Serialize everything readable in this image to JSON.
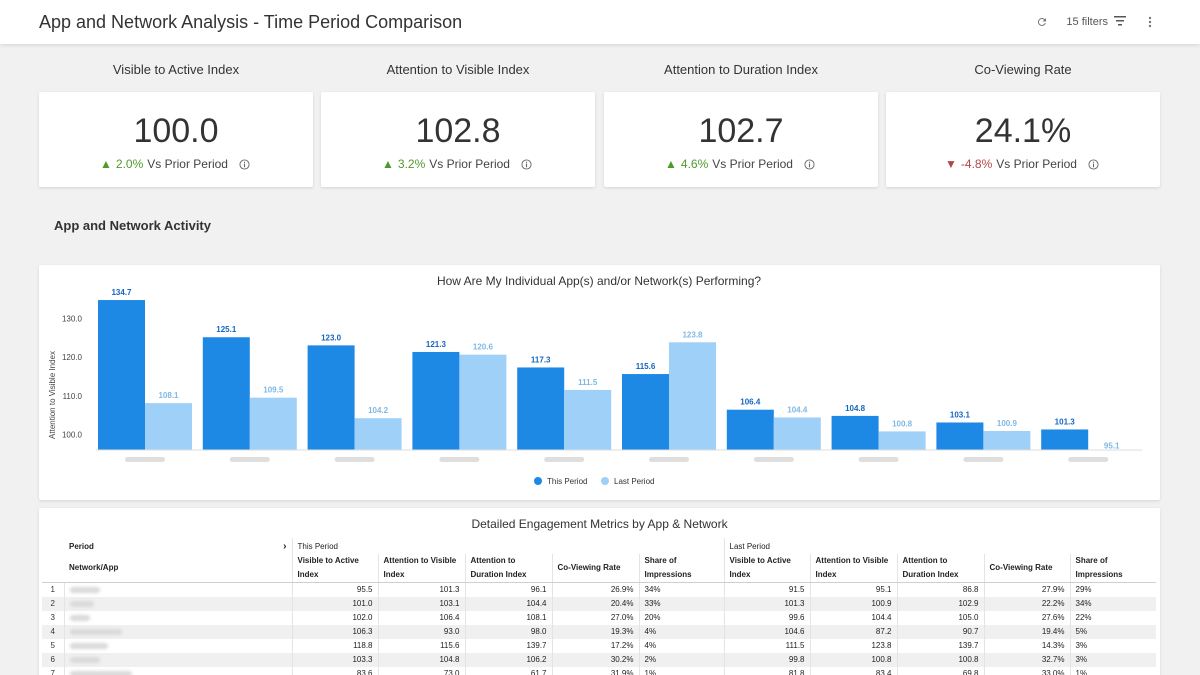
{
  "header": {
    "title": "App and Network Analysis - Time Period Comparison",
    "filters_label": "15 filters"
  },
  "kpis": [
    {
      "title": "Visible to Active Index",
      "value": "100.0",
      "direction": "up",
      "delta": "2.0%",
      "suffix": "Vs Prior Period"
    },
    {
      "title": "Attention to Visible Index",
      "value": "102.8",
      "direction": "up",
      "delta": "3.2%",
      "suffix": "Vs Prior Period"
    },
    {
      "title": "Attention to Duration Index",
      "value": "102.7",
      "direction": "up",
      "delta": "4.6%",
      "suffix": "Vs Prior Period"
    },
    {
      "title": "Co-Viewing Rate",
      "value": "24.1%",
      "direction": "down",
      "delta": "-4.8%",
      "suffix": "Vs Prior Period"
    }
  ],
  "section_title": "App and Network Activity",
  "chart_data": {
    "type": "bar",
    "title": "How Are My Individual App(s) and/or Network(s) Performing?",
    "ylabel": "Attention to Visible Index",
    "xlabel": "",
    "yticks": [
      "130.0",
      "120.0",
      "110.0",
      "100.0"
    ],
    "ylim": [
      96,
      136
    ],
    "series": [
      {
        "name": "This Period",
        "color": "#1e88e5",
        "values": [
          134.7,
          125.1,
          123.0,
          121.3,
          117.3,
          115.6,
          106.4,
          104.8,
          103.1,
          101.3
        ]
      },
      {
        "name": "Last Period",
        "color": "#9fd0f7",
        "values": [
          108.1,
          109.5,
          104.2,
          120.6,
          111.5,
          123.8,
          104.4,
          100.8,
          100.9,
          95.1
        ]
      }
    ],
    "legend": "bottom"
  },
  "table": {
    "title": "Detailed Engagement Metrics by App & Network",
    "period_label": "Period",
    "network_label": "Network/App",
    "this_period": "This Period",
    "last_period": "Last Period",
    "columns": [
      "Visible to Active Index",
      "Attention to Visible Index",
      "Attention to Duration Index",
      "Co-Viewing Rate",
      "Share of Impressions"
    ],
    "rows": [
      {
        "idx": "1",
        "this": [
          "95.5",
          "101.3",
          "96.1",
          "26.9%",
          "34%"
        ],
        "last": [
          "91.5",
          "95.1",
          "86.8",
          "27.9%",
          "29%"
        ]
      },
      {
        "idx": "2",
        "this": [
          "101.0",
          "103.1",
          "104.4",
          "20.4%",
          "33%"
        ],
        "last": [
          "101.3",
          "100.9",
          "102.9",
          "22.2%",
          "34%"
        ]
      },
      {
        "idx": "3",
        "this": [
          "102.0",
          "106.4",
          "108.1",
          "27.0%",
          "20%"
        ],
        "last": [
          "99.6",
          "104.4",
          "105.0",
          "27.6%",
          "22%"
        ]
      },
      {
        "idx": "4",
        "this": [
          "106.3",
          "93.0",
          "98.0",
          "19.3%",
          "4%"
        ],
        "last": [
          "104.6",
          "87.2",
          "90.7",
          "19.4%",
          "5%"
        ]
      },
      {
        "idx": "5",
        "this": [
          "118.8",
          "115.6",
          "139.7",
          "17.2%",
          "4%"
        ],
        "last": [
          "111.5",
          "123.8",
          "139.7",
          "14.3%",
          "3%"
        ]
      },
      {
        "idx": "6",
        "this": [
          "103.3",
          "104.8",
          "106.2",
          "30.2%",
          "2%"
        ],
        "last": [
          "99.8",
          "100.8",
          "100.8",
          "32.7%",
          "3%"
        ]
      },
      {
        "idx": "7",
        "this": [
          "83.6",
          "73.0",
          "61.7",
          "31.9%",
          "1%"
        ],
        "last": [
          "81.8",
          "83.4",
          "69.8",
          "33.0%",
          "1%"
        ]
      }
    ]
  }
}
